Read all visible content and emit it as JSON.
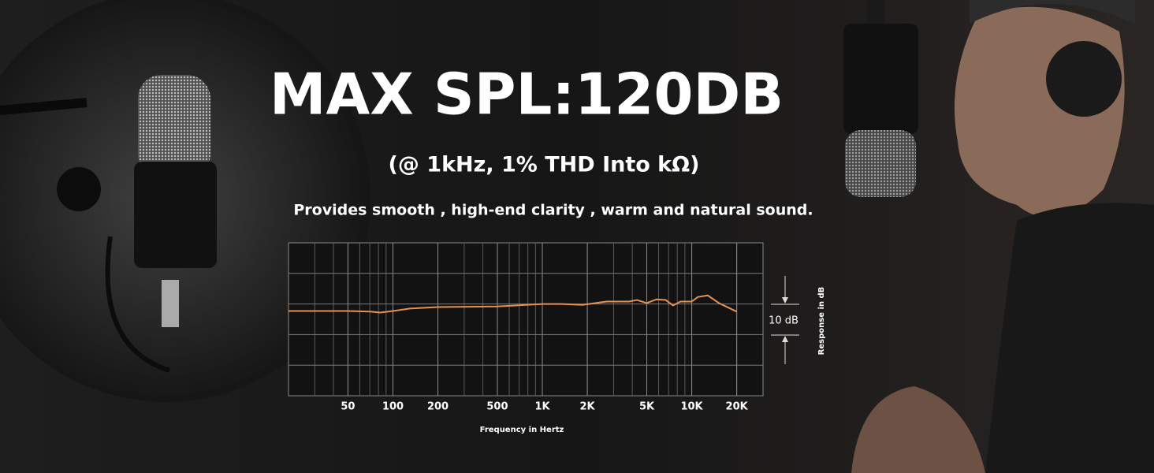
{
  "chart_data": {
    "type": "line",
    "title": "MAX SPL:120DB",
    "subtitle": "(@ 1kHz, 1% THD Into kΩ)",
    "caption": "Provides smooth , high-end clarity , warm and natural sound.",
    "x_label": "Frequency in Hertz",
    "y_label": "Response in dB",
    "annotation": "10 dB",
    "xscale": "log",
    "xlim": [
      20,
      30000
    ],
    "ylim": [
      -30,
      20
    ],
    "xticks": [
      50,
      100,
      200,
      500,
      {
        "value": 1000,
        "label": "1K"
      },
      {
        "value": 2000,
        "label": "2K"
      },
      {
        "value": 5000,
        "label": "5K"
      },
      {
        "value": 10000,
        "label": "10K"
      },
      {
        "value": 20000,
        "label": "20K"
      }
    ],
    "ygrid": [
      10,
      0,
      -10,
      -20
    ],
    "grid": true,
    "color": "#e8914a",
    "x": [
      20,
      50,
      71,
      82,
      100,
      130,
      200,
      500,
      1000,
      1350,
      1850,
      2700,
      3800,
      4300,
      5000,
      5800,
      6700,
      7500,
      8400,
      10000,
      11000,
      12800,
      15200,
      20000
    ],
    "values": [
      -2.3,
      -2.3,
      -2.5,
      -2.8,
      -2.3,
      -1.5,
      -1,
      -0.8,
      0,
      0,
      -0.3,
      0.8,
      0.8,
      1.3,
      0.3,
      1.5,
      1.3,
      -0.5,
      0.8,
      0.8,
      2.3,
      2.8,
      0.3,
      -2.5
    ]
  }
}
